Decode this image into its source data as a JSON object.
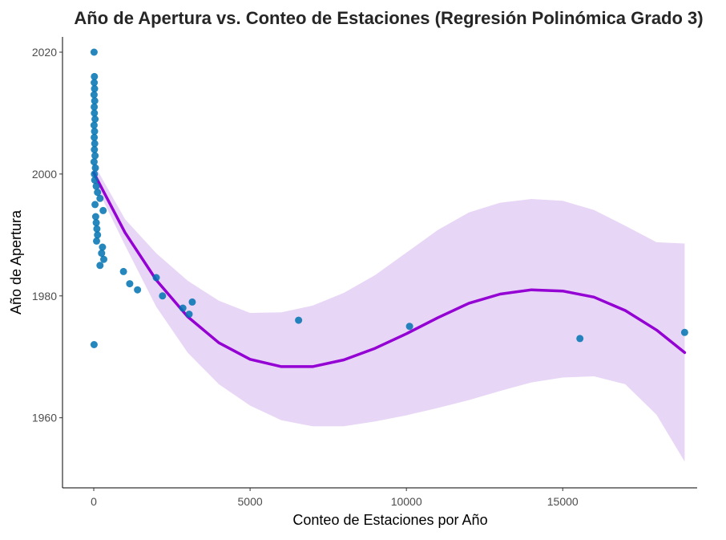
{
  "chart_data": {
    "type": "scatter",
    "title": "Año de Apertura vs. Conteo de Estaciones (Regresión Polinómica Grado 3)",
    "xlabel": "Conteo de Estaciones por Año",
    "ylabel": "Año de Apertura",
    "xlim": [
      -1000,
      19300
    ],
    "ylim": [
      1948.5,
      2022.5
    ],
    "x_ticks": [
      0,
      5000,
      10000,
      15000
    ],
    "y_ticks": [
      1960,
      1980,
      2000,
      2020
    ],
    "grid": false,
    "legend": "none",
    "colors": {
      "points": "#0072B2",
      "fit_line": "#9400D3",
      "confidence_band": "#E8D6F6"
    },
    "points": [
      {
        "x": 10,
        "y": 2020
      },
      {
        "x": 20,
        "y": 2016
      },
      {
        "x": 15,
        "y": 2015
      },
      {
        "x": 25,
        "y": 2014
      },
      {
        "x": 10,
        "y": 2013
      },
      {
        "x": 30,
        "y": 2012
      },
      {
        "x": 15,
        "y": 2011
      },
      {
        "x": 20,
        "y": 2010
      },
      {
        "x": 40,
        "y": 2009
      },
      {
        "x": 10,
        "y": 2008
      },
      {
        "x": 25,
        "y": 2007
      },
      {
        "x": 15,
        "y": 2006
      },
      {
        "x": 30,
        "y": 2005
      },
      {
        "x": 20,
        "y": 2004
      },
      {
        "x": 40,
        "y": 2003
      },
      {
        "x": 10,
        "y": 2002
      },
      {
        "x": 50,
        "y": 2001
      },
      {
        "x": 20,
        "y": 2000
      },
      {
        "x": 30,
        "y": 1999
      },
      {
        "x": 80,
        "y": 1998
      },
      {
        "x": 120,
        "y": 1997
      },
      {
        "x": 200,
        "y": 1996
      },
      {
        "x": 40,
        "y": 1995
      },
      {
        "x": 300,
        "y": 1994
      },
      {
        "x": 60,
        "y": 1993
      },
      {
        "x": 80,
        "y": 1992
      },
      {
        "x": 100,
        "y": 1991
      },
      {
        "x": 120,
        "y": 1990
      },
      {
        "x": 90,
        "y": 1989
      },
      {
        "x": 280,
        "y": 1988
      },
      {
        "x": 250,
        "y": 1987
      },
      {
        "x": 320,
        "y": 1986
      },
      {
        "x": 200,
        "y": 1985
      },
      {
        "x": 950,
        "y": 1984
      },
      {
        "x": 2000,
        "y": 1983
      },
      {
        "x": 1150,
        "y": 1982
      },
      {
        "x": 1400,
        "y": 1981
      },
      {
        "x": 2200,
        "y": 1980
      },
      {
        "x": 3150,
        "y": 1979
      },
      {
        "x": 2850,
        "y": 1978
      },
      {
        "x": 3050,
        "y": 1977
      },
      {
        "x": 6550,
        "y": 1976
      },
      {
        "x": 10100,
        "y": 1975
      },
      {
        "x": 18900,
        "y": 1974
      },
      {
        "x": 15550,
        "y": 1973
      },
      {
        "x": 10,
        "y": 1972
      }
    ],
    "fit_line": {
      "x": [
        0,
        1000,
        2000,
        3000,
        4000,
        5000,
        6000,
        7000,
        8000,
        9000,
        10000,
        11000,
        12000,
        13000,
        14000,
        15000,
        16000,
        17000,
        18000,
        18900
      ],
      "y": [
        2000.2,
        1990.4,
        1982.6,
        1976.6,
        1972.3,
        1969.6,
        1968.4,
        1968.4,
        1969.5,
        1971.4,
        1973.8,
        1976.4,
        1978.8,
        1980.3,
        1981.0,
        1980.8,
        1979.8,
        1977.6,
        1974.4,
        1970.7
      ],
      "lower": [
        1998.8,
        1988.3,
        1978.2,
        1970.7,
        1965.5,
        1962.0,
        1959.6,
        1958.6,
        1958.6,
        1959.4,
        1960.4,
        1961.6,
        1962.9,
        1964.4,
        1965.8,
        1966.6,
        1966.8,
        1965.5,
        1960.5,
        1952.8
      ],
      "upper": [
        2001.7,
        1992.6,
        1987.0,
        1982.5,
        1979.2,
        1977.2,
        1977.3,
        1978.4,
        1980.5,
        1983.4,
        1987.1,
        1990.8,
        1993.7,
        1995.3,
        1995.9,
        1995.6,
        1994.1,
        1991.5,
        1988.8,
        1988.6
      ]
    }
  }
}
